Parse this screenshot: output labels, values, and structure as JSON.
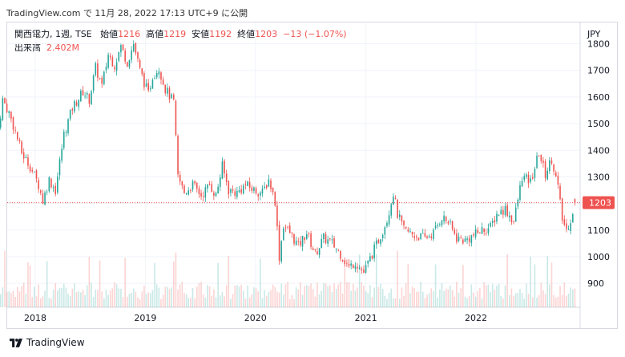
{
  "header": {
    "source_line": "TradingView.com で 11月 28, 2022 17:13 UTC+9 に公開"
  },
  "legend": {
    "symbol": "関西電力, 1週, TSE",
    "open_label": "始値",
    "open": "1216",
    "high_label": "高値",
    "high": "1219",
    "low_label": "安値",
    "low": "1192",
    "close_label": "終値",
    "close": "1203",
    "change": "−13 (−1.07%)",
    "volume_label": "出来高",
    "volume": "2.402M"
  },
  "axis": {
    "currency": "JPY"
  },
  "brand": {
    "name": "TradingView"
  },
  "colors": {
    "up": "#26a69a",
    "down": "#ef5350",
    "grid": "#f0f3fa",
    "last_price": "#ef5350"
  },
  "chart_data": {
    "type": "candlestick",
    "interval": "1 week",
    "y_ticks": [
      900,
      1000,
      1100,
      1200,
      1300,
      1400,
      1500,
      1600,
      1700,
      1800
    ],
    "ylim": [
      810,
      1880
    ],
    "x_ticks": [
      "2018",
      "2019",
      "2020",
      "2021",
      "2022"
    ],
    "last_price": 1203,
    "last_price_label": "1203",
    "anchors": [
      [
        "2017-09-01",
        1480
      ],
      [
        "2017-09-15",
        1590
      ],
      [
        "2017-10-06",
        1540
      ],
      [
        "2017-10-27",
        1470
      ],
      [
        "2017-11-17",
        1390
      ],
      [
        "2017-12-15",
        1340
      ],
      [
        "2018-01-12",
        1270
      ],
      [
        "2018-01-26",
        1210
      ],
      [
        "2018-02-16",
        1290
      ],
      [
        "2018-03-09",
        1250
      ],
      [
        "2018-04-06",
        1460
      ],
      [
        "2018-05-04",
        1560
      ],
      [
        "2018-06-08",
        1620
      ],
      [
        "2018-06-29",
        1590
      ],
      [
        "2018-07-20",
        1710
      ],
      [
        "2018-08-10",
        1640
      ],
      [
        "2018-08-31",
        1760
      ],
      [
        "2018-09-21",
        1720
      ],
      [
        "2018-10-12",
        1790
      ],
      [
        "2018-11-02",
        1730
      ],
      [
        "2018-11-23",
        1800
      ],
      [
        "2018-12-14",
        1700
      ],
      [
        "2019-01-11",
        1610
      ],
      [
        "2019-01-25",
        1680
      ],
      [
        "2019-02-15",
        1710
      ],
      [
        "2019-03-08",
        1630
      ],
      [
        "2019-04-05",
        1580
      ],
      [
        "2019-04-19",
        1300
      ],
      [
        "2019-05-10",
        1240
      ],
      [
        "2019-06-07",
        1270
      ],
      [
        "2019-07-05",
        1230
      ],
      [
        "2019-08-02",
        1270
      ],
      [
        "2019-08-23",
        1230
      ],
      [
        "2019-09-13",
        1340
      ],
      [
        "2019-10-04",
        1250
      ],
      [
        "2019-11-01",
        1240
      ],
      [
        "2019-11-29",
        1270
      ],
      [
        "2019-12-27",
        1250
      ],
      [
        "2020-01-24",
        1240
      ],
      [
        "2020-02-14",
        1290
      ],
      [
        "2020-03-06",
        1210
      ],
      [
        "2020-03-20",
        1000
      ],
      [
        "2020-04-03",
        1120
      ],
      [
        "2020-04-24",
        1090
      ],
      [
        "2020-05-22",
        1040
      ],
      [
        "2020-06-19",
        1090
      ],
      [
        "2020-07-17",
        1010
      ],
      [
        "2020-08-14",
        1070
      ],
      [
        "2020-09-11",
        1050
      ],
      [
        "2020-10-09",
        1010
      ],
      [
        "2020-11-06",
        960
      ],
      [
        "2020-11-27",
        980
      ],
      [
        "2020-12-25",
        940
      ],
      [
        "2021-01-22",
        1010
      ],
      [
        "2021-02-19",
        1080
      ],
      [
        "2021-03-12",
        1140
      ],
      [
        "2021-04-02",
        1240
      ],
      [
        "2021-04-16",
        1160
      ],
      [
        "2021-05-07",
        1100
      ],
      [
        "2021-06-11",
        1080
      ],
      [
        "2021-07-16",
        1070
      ],
      [
        "2021-08-13",
        1090
      ],
      [
        "2021-09-10",
        1150
      ],
      [
        "2021-10-01",
        1130
      ],
      [
        "2021-10-29",
        1070
      ],
      [
        "2021-11-26",
        1060
      ],
      [
        "2021-12-24",
        1080
      ],
      [
        "2022-01-21",
        1100
      ],
      [
        "2022-02-18",
        1110
      ],
      [
        "2022-03-11",
        1160
      ],
      [
        "2022-04-08",
        1180
      ],
      [
        "2022-05-06",
        1130
      ],
      [
        "2022-06-03",
        1300
      ],
      [
        "2022-07-01",
        1280
      ],
      [
        "2022-07-29",
        1390
      ],
      [
        "2022-08-19",
        1310
      ],
      [
        "2022-09-09",
        1370
      ],
      [
        "2022-09-30",
        1260
      ],
      [
        "2022-10-14",
        1140
      ],
      [
        "2022-10-28",
        1100
      ],
      [
        "2022-11-11",
        1140
      ],
      [
        "2022-11-25",
        1203
      ]
    ]
  }
}
